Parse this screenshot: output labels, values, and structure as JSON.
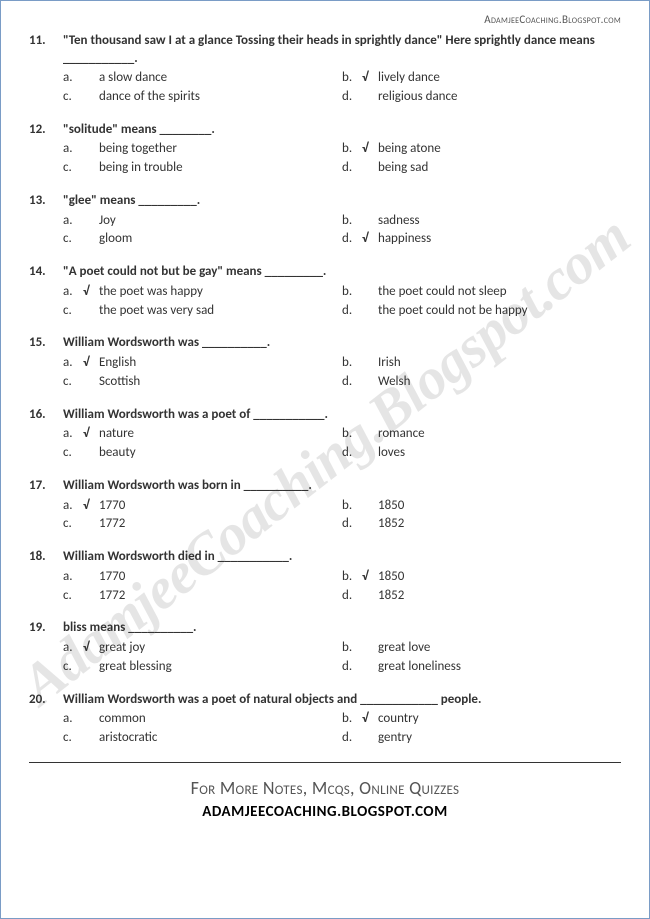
{
  "header_url": "AdamjeeCoaching.Blogspot.com",
  "watermark": "AdamjeeCoaching.Blogspot.com",
  "footer": {
    "line1": "For More Notes, Mcqs, Online Quizzes",
    "line2": "ADAMJEECOACHING.BLOGSPOT.COM"
  },
  "check_mark": "√",
  "questions": [
    {
      "num": "11.",
      "text": "\"Ten thousand saw I at a glance Tossing their heads in sprightly dance\" Here sprightly dance means ___________.",
      "options": [
        {
          "letter": "a.",
          "text": "a slow dance",
          "correct": false
        },
        {
          "letter": "b.",
          "text": "lively dance",
          "correct": true
        },
        {
          "letter": "c.",
          "text": "dance of the spirits",
          "correct": false
        },
        {
          "letter": "d.",
          "text": "religious dance",
          "correct": false
        }
      ]
    },
    {
      "num": "12.",
      "text": "\"solitude\" means ________.",
      "options": [
        {
          "letter": "a.",
          "text": "being together",
          "correct": false
        },
        {
          "letter": "b.",
          "text": "being atone",
          "correct": true
        },
        {
          "letter": "c.",
          "text": "being in trouble",
          "correct": false
        },
        {
          "letter": "d.",
          "text": "being sad",
          "correct": false
        }
      ]
    },
    {
      "num": "13.",
      "text": "\"glee\" means _________.",
      "options": [
        {
          "letter": "a.",
          "text": "Joy",
          "correct": false
        },
        {
          "letter": "b.",
          "text": "sadness",
          "correct": false
        },
        {
          "letter": "c.",
          "text": "gloom",
          "correct": false
        },
        {
          "letter": "d.",
          "text": "happiness",
          "correct": true
        }
      ]
    },
    {
      "num": "14.",
      "text": "\"A poet could not but be gay\" means _________.",
      "options": [
        {
          "letter": "a.",
          "text": "the poet was happy",
          "correct": true
        },
        {
          "letter": "b.",
          "text": "the poet could not sleep",
          "correct": false
        },
        {
          "letter": "c.",
          "text": "the poet was very sad",
          "correct": false
        },
        {
          "letter": "d.",
          "text": "the poet could not be happy",
          "correct": false
        }
      ]
    },
    {
      "num": "15.",
      "text": "William Wordsworth was __________.",
      "options": [
        {
          "letter": "a.",
          "text": "English",
          "correct": true
        },
        {
          "letter": "b.",
          "text": "Irish",
          "correct": false
        },
        {
          "letter": "c.",
          "text": "Scottish",
          "correct": false
        },
        {
          "letter": "d.",
          "text": "Welsh",
          "correct": false
        }
      ]
    },
    {
      "num": "16.",
      "text": "William Wordsworth was a poet of ___________.",
      "options": [
        {
          "letter": "a.",
          "text": "nature",
          "correct": true
        },
        {
          "letter": "b.",
          "text": "romance",
          "correct": false
        },
        {
          "letter": "c.",
          "text": "beauty",
          "correct": false
        },
        {
          "letter": "d.",
          "text": "loves",
          "correct": false
        }
      ]
    },
    {
      "num": "17.",
      "text": "William Wordsworth was born in __________.",
      "options": [
        {
          "letter": "a.",
          "text": "1770",
          "correct": true
        },
        {
          "letter": "b.",
          "text": "1850",
          "correct": false
        },
        {
          "letter": "c.",
          "text": "1772",
          "correct": false
        },
        {
          "letter": "d.",
          "text": "1852",
          "correct": false
        }
      ]
    },
    {
      "num": "18.",
      "text": "William Wordsworth died in ___________.",
      "options": [
        {
          "letter": "a.",
          "text": "1770",
          "correct": false
        },
        {
          "letter": "b.",
          "text": "1850",
          "correct": true
        },
        {
          "letter": "c.",
          "text": "1772",
          "correct": false
        },
        {
          "letter": "d.",
          "text": "1852",
          "correct": false
        }
      ]
    },
    {
      "num": "19.",
      "text": "bliss means __________.",
      "options": [
        {
          "letter": "a.",
          "text": "great joy",
          "correct": true
        },
        {
          "letter": "b.",
          "text": "great love",
          "correct": false
        },
        {
          "letter": "c.",
          "text": "great blessing",
          "correct": false
        },
        {
          "letter": "d.",
          "text": "great loneliness",
          "correct": false
        }
      ]
    },
    {
      "num": "20.",
      "text": "William Wordsworth was a poet of natural objects and ____________ people.",
      "options": [
        {
          "letter": "a.",
          "text": "common",
          "correct": false
        },
        {
          "letter": "b.",
          "text": "country",
          "correct": true
        },
        {
          "letter": "c.",
          "text": "aristocratic",
          "correct": false
        },
        {
          "letter": "d.",
          "text": "gentry",
          "correct": false
        }
      ]
    }
  ]
}
